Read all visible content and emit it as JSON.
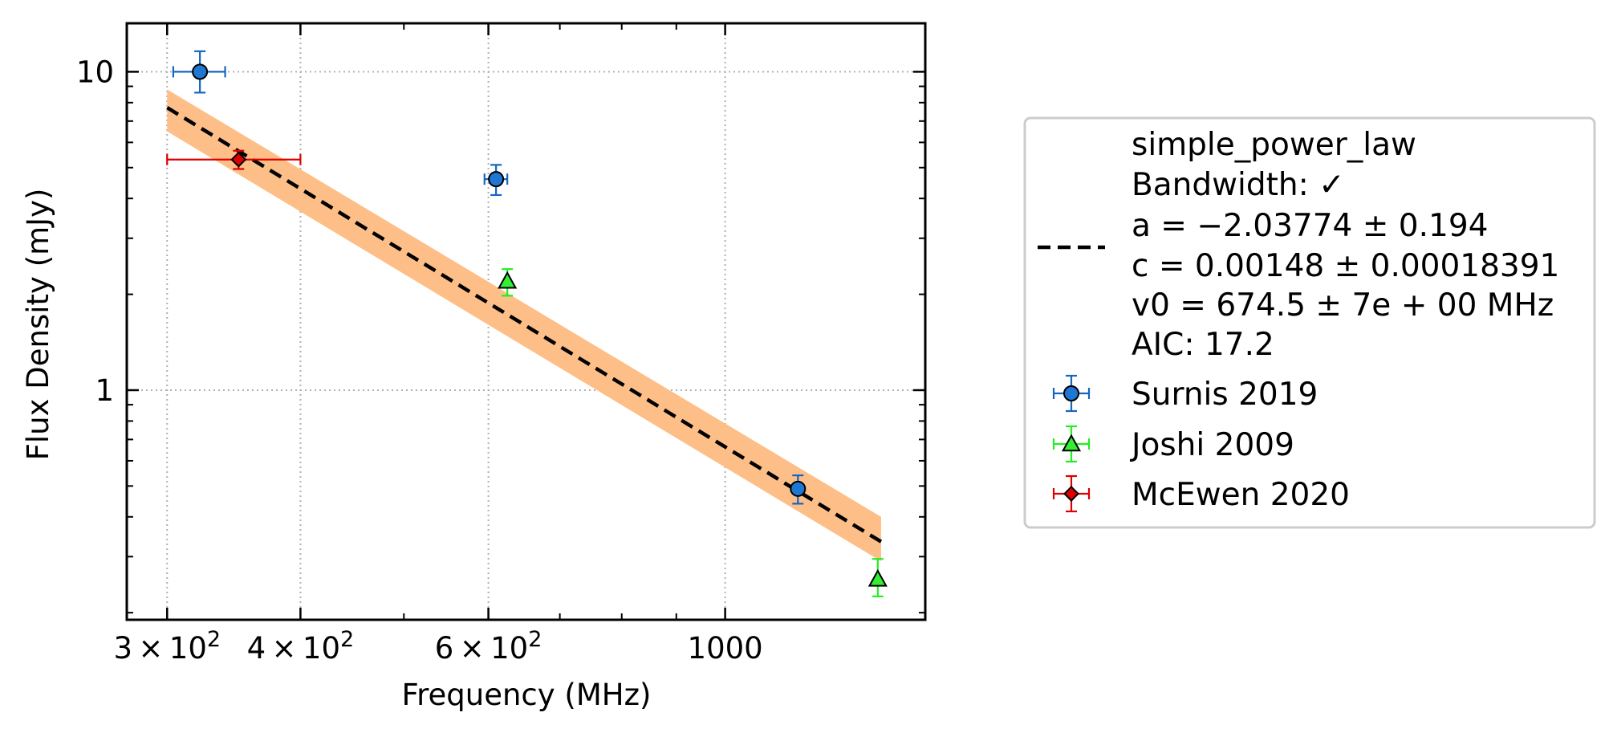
{
  "chart_data": {
    "type": "scatter",
    "xlabel": "Frequency (MHz)",
    "ylabel": "Flux Density (mJy)",
    "x_scale": "log",
    "y_scale": "log",
    "xlim": [
      275,
      1540
    ],
    "ylim": [
      0.19,
      14.2
    ],
    "x_ticks": [
      {
        "value": 300,
        "mantissa": "3",
        "exp": "2"
      },
      {
        "value": 400,
        "mantissa": "4",
        "exp": "2"
      },
      {
        "value": 600,
        "mantissa": "6",
        "exp": "2"
      },
      {
        "value": 1000,
        "label": "1000"
      }
    ],
    "y_ticks": [
      {
        "value": 1,
        "label": "1"
      },
      {
        "value": 10,
        "label": "10"
      }
    ],
    "grid": "dotted at major ticks",
    "legend_position": "right, outside plot",
    "fit": {
      "model_name": "simple_power_law",
      "bandwidth_line": "Bandwidth: ✓",
      "a_line": "a = −2.03774 ± 0.194",
      "c_line": "c = 0.00148 ± 0.00018391",
      "v0_line": "v0 = 674.5 ± 7e + 00 MHz",
      "aic_line": "AIC: 17.2",
      "a": -2.03774,
      "c": 0.00148,
      "v0": 674.5,
      "x_range": [
        300,
        1400
      ],
      "line_color": "#000000",
      "band_color": "#fdbf87",
      "band_lower": [
        6.5,
        0.29
      ],
      "band_upper": [
        8.8,
        0.4
      ]
    },
    "series": [
      {
        "name": "Surnis 2019",
        "marker": "circle",
        "color": "#1f77d4",
        "errcolor": "#1565c0",
        "points": [
          {
            "x": 322,
            "y": 10.0,
            "xerr": 18,
            "yerr_lo": 1.4,
            "yerr_hi": 1.6
          },
          {
            "x": 610,
            "y": 4.6,
            "xerr": 15,
            "yerr_lo": 0.5,
            "yerr_hi": 0.5
          },
          {
            "x": 1170,
            "y": 0.49,
            "xerr": 0,
            "yerr_lo": 0.05,
            "yerr_hi": 0.05
          }
        ]
      },
      {
        "name": "Joshi 2009",
        "marker": "triangle",
        "color": "#33ee33",
        "errcolor": "#22ee22",
        "points": [
          {
            "x": 625,
            "y": 2.2,
            "xerr": 0,
            "yerr_lo": 0.22,
            "yerr_hi": 0.2
          },
          {
            "x": 1390,
            "y": 0.255,
            "xerr": 0,
            "yerr_lo": 0.03,
            "yerr_hi": 0.04
          }
        ]
      },
      {
        "name": "McEwen 2020",
        "marker": "diamond",
        "color": "#dd0000",
        "errcolor": "#dd0000",
        "points": [
          {
            "x": 350,
            "y": 5.3,
            "xerr_lo": 50,
            "xerr_hi": 50,
            "yerr_lo": 0.35,
            "yerr_hi": 0.35
          }
        ]
      }
    ]
  }
}
